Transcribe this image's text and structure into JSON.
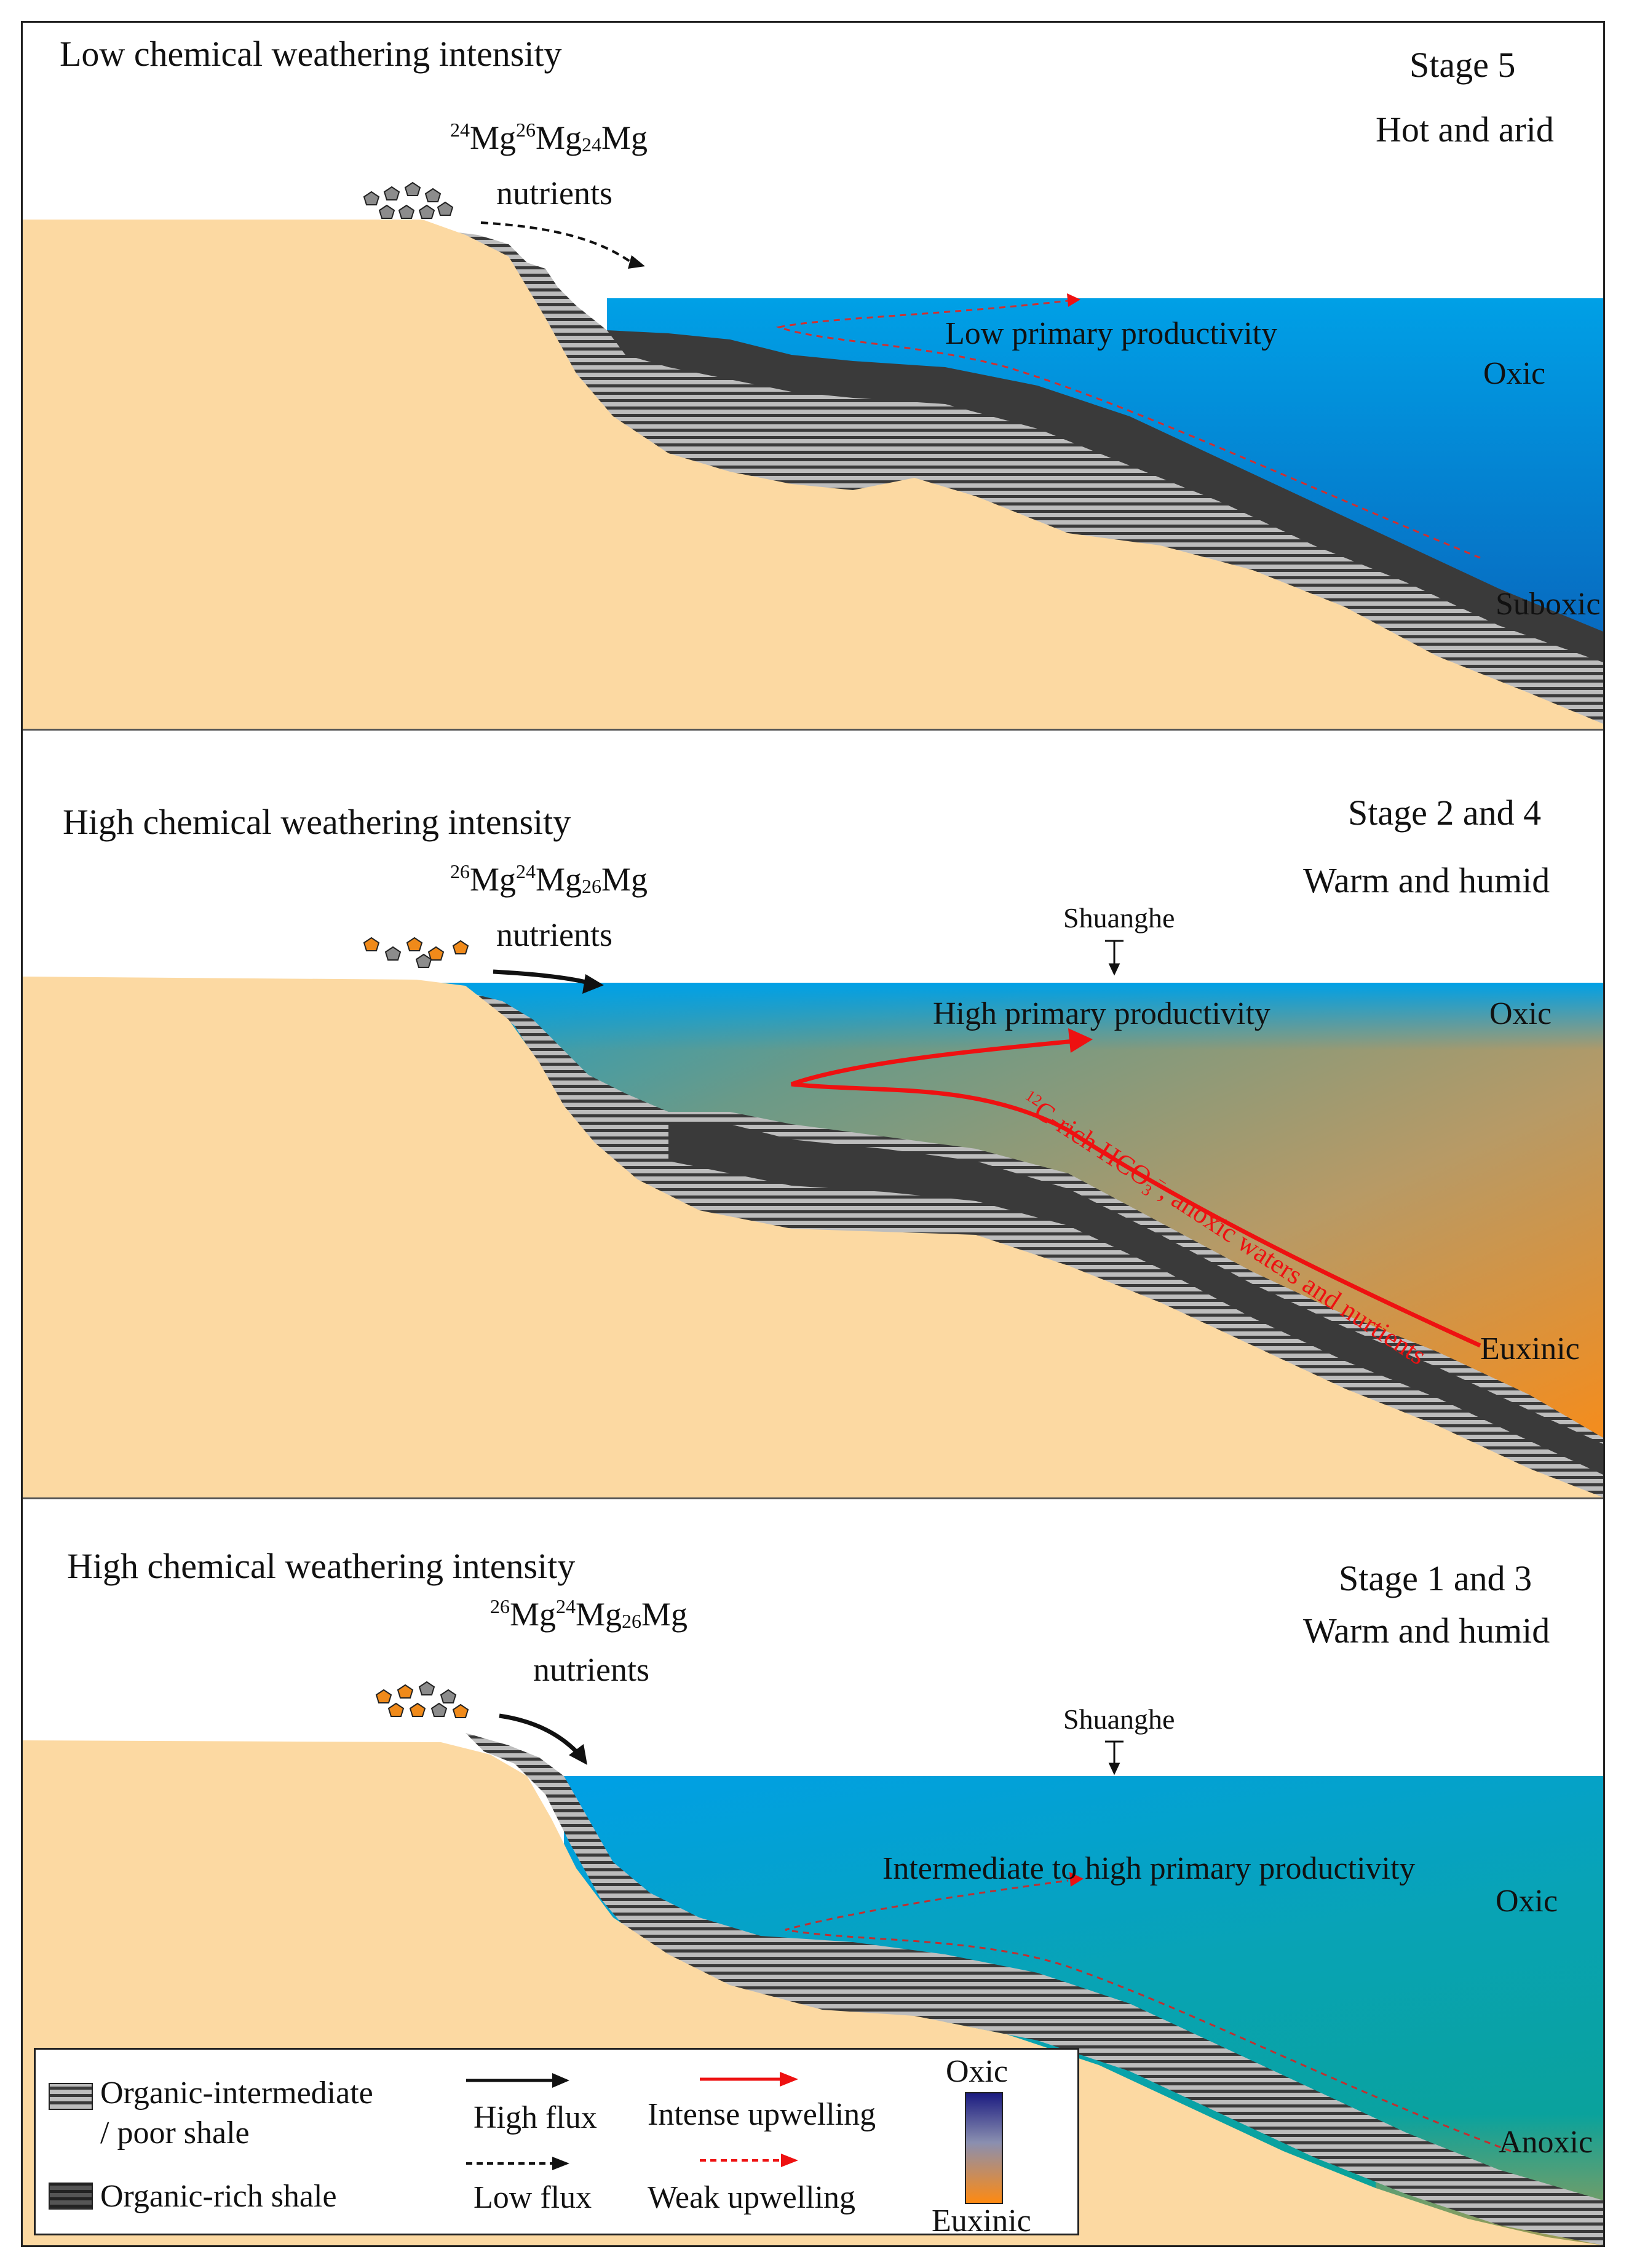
{
  "panels": [
    {
      "id": "stage5",
      "weathering": "Low chemical weathering intensity",
      "stage": "Stage 5",
      "climate": "Hot and arid",
      "isotopes": {
        "a": "24",
        "a_el": "Mg",
        "b": "26",
        "b_el": "Mg",
        "c": "24",
        "c_el": "Mg"
      },
      "nutrients": "nutrients",
      "productivity": "Low primary productivity",
      "upper_redox": "Oxic",
      "lower_redox": "Suboxic"
    },
    {
      "id": "stage24",
      "weathering": "High chemical weathering intensity",
      "stage": "Stage 2 and 4",
      "climate": "Warm and humid",
      "isotopes": {
        "a": "26",
        "a_el": "Mg",
        "b": "24",
        "b_el": "Mg",
        "c": "26",
        "c_el": "Mg"
      },
      "nutrients": "nutrients",
      "location": "Shuanghe",
      "productivity": "High primary productivity",
      "upwelling_label_sup": "12",
      "upwelling_label_a": "C-rich HCO",
      "upwelling_label_sub": "3",
      "upwelling_label_minus": "−",
      "upwelling_label_b": ", anoxic waters and nurtients",
      "upper_redox": "Oxic",
      "lower_redox": "Euxinic"
    },
    {
      "id": "stage13",
      "weathering": "High chemical weathering intensity",
      "stage": "Stage 1 and  3",
      "climate": "Warm and humid",
      "isotopes": {
        "a": "26",
        "a_el": "Mg",
        "b": "24",
        "b_el": "Mg",
        "c": "26",
        "c_el": "Mg"
      },
      "nutrients": "nutrients",
      "location": "Shuanghe",
      "productivity": "Intermediate to high  primary productivity",
      "upper_redox": "Oxic",
      "lower_redox": "Anoxic"
    }
  ],
  "legend": {
    "intermediate_shale_1": "Organic-intermediate",
    "intermediate_shale_2": "/ poor  shale",
    "rich_shale": "Organic-rich shale",
    "high_flux": "High flux",
    "low_flux": "Low flux",
    "intense_upwelling": "Intense upwelling",
    "weak_upwelling": "Weak upwelling",
    "scale_top": "Oxic",
    "scale_bottom": "Euxinic"
  },
  "colors": {
    "land": "#fcd9a2",
    "ocean": "#0099dd",
    "deep_ocean": "#0a5fb8",
    "euxinic": "#ff8a10",
    "anoxic_teal": "#08a0a0",
    "rich_shale": "#3c3c3c",
    "upwelling": "#ee1111",
    "pebble_grey": "#8c8c8c",
    "pebble_orange": "#f08a1a"
  }
}
